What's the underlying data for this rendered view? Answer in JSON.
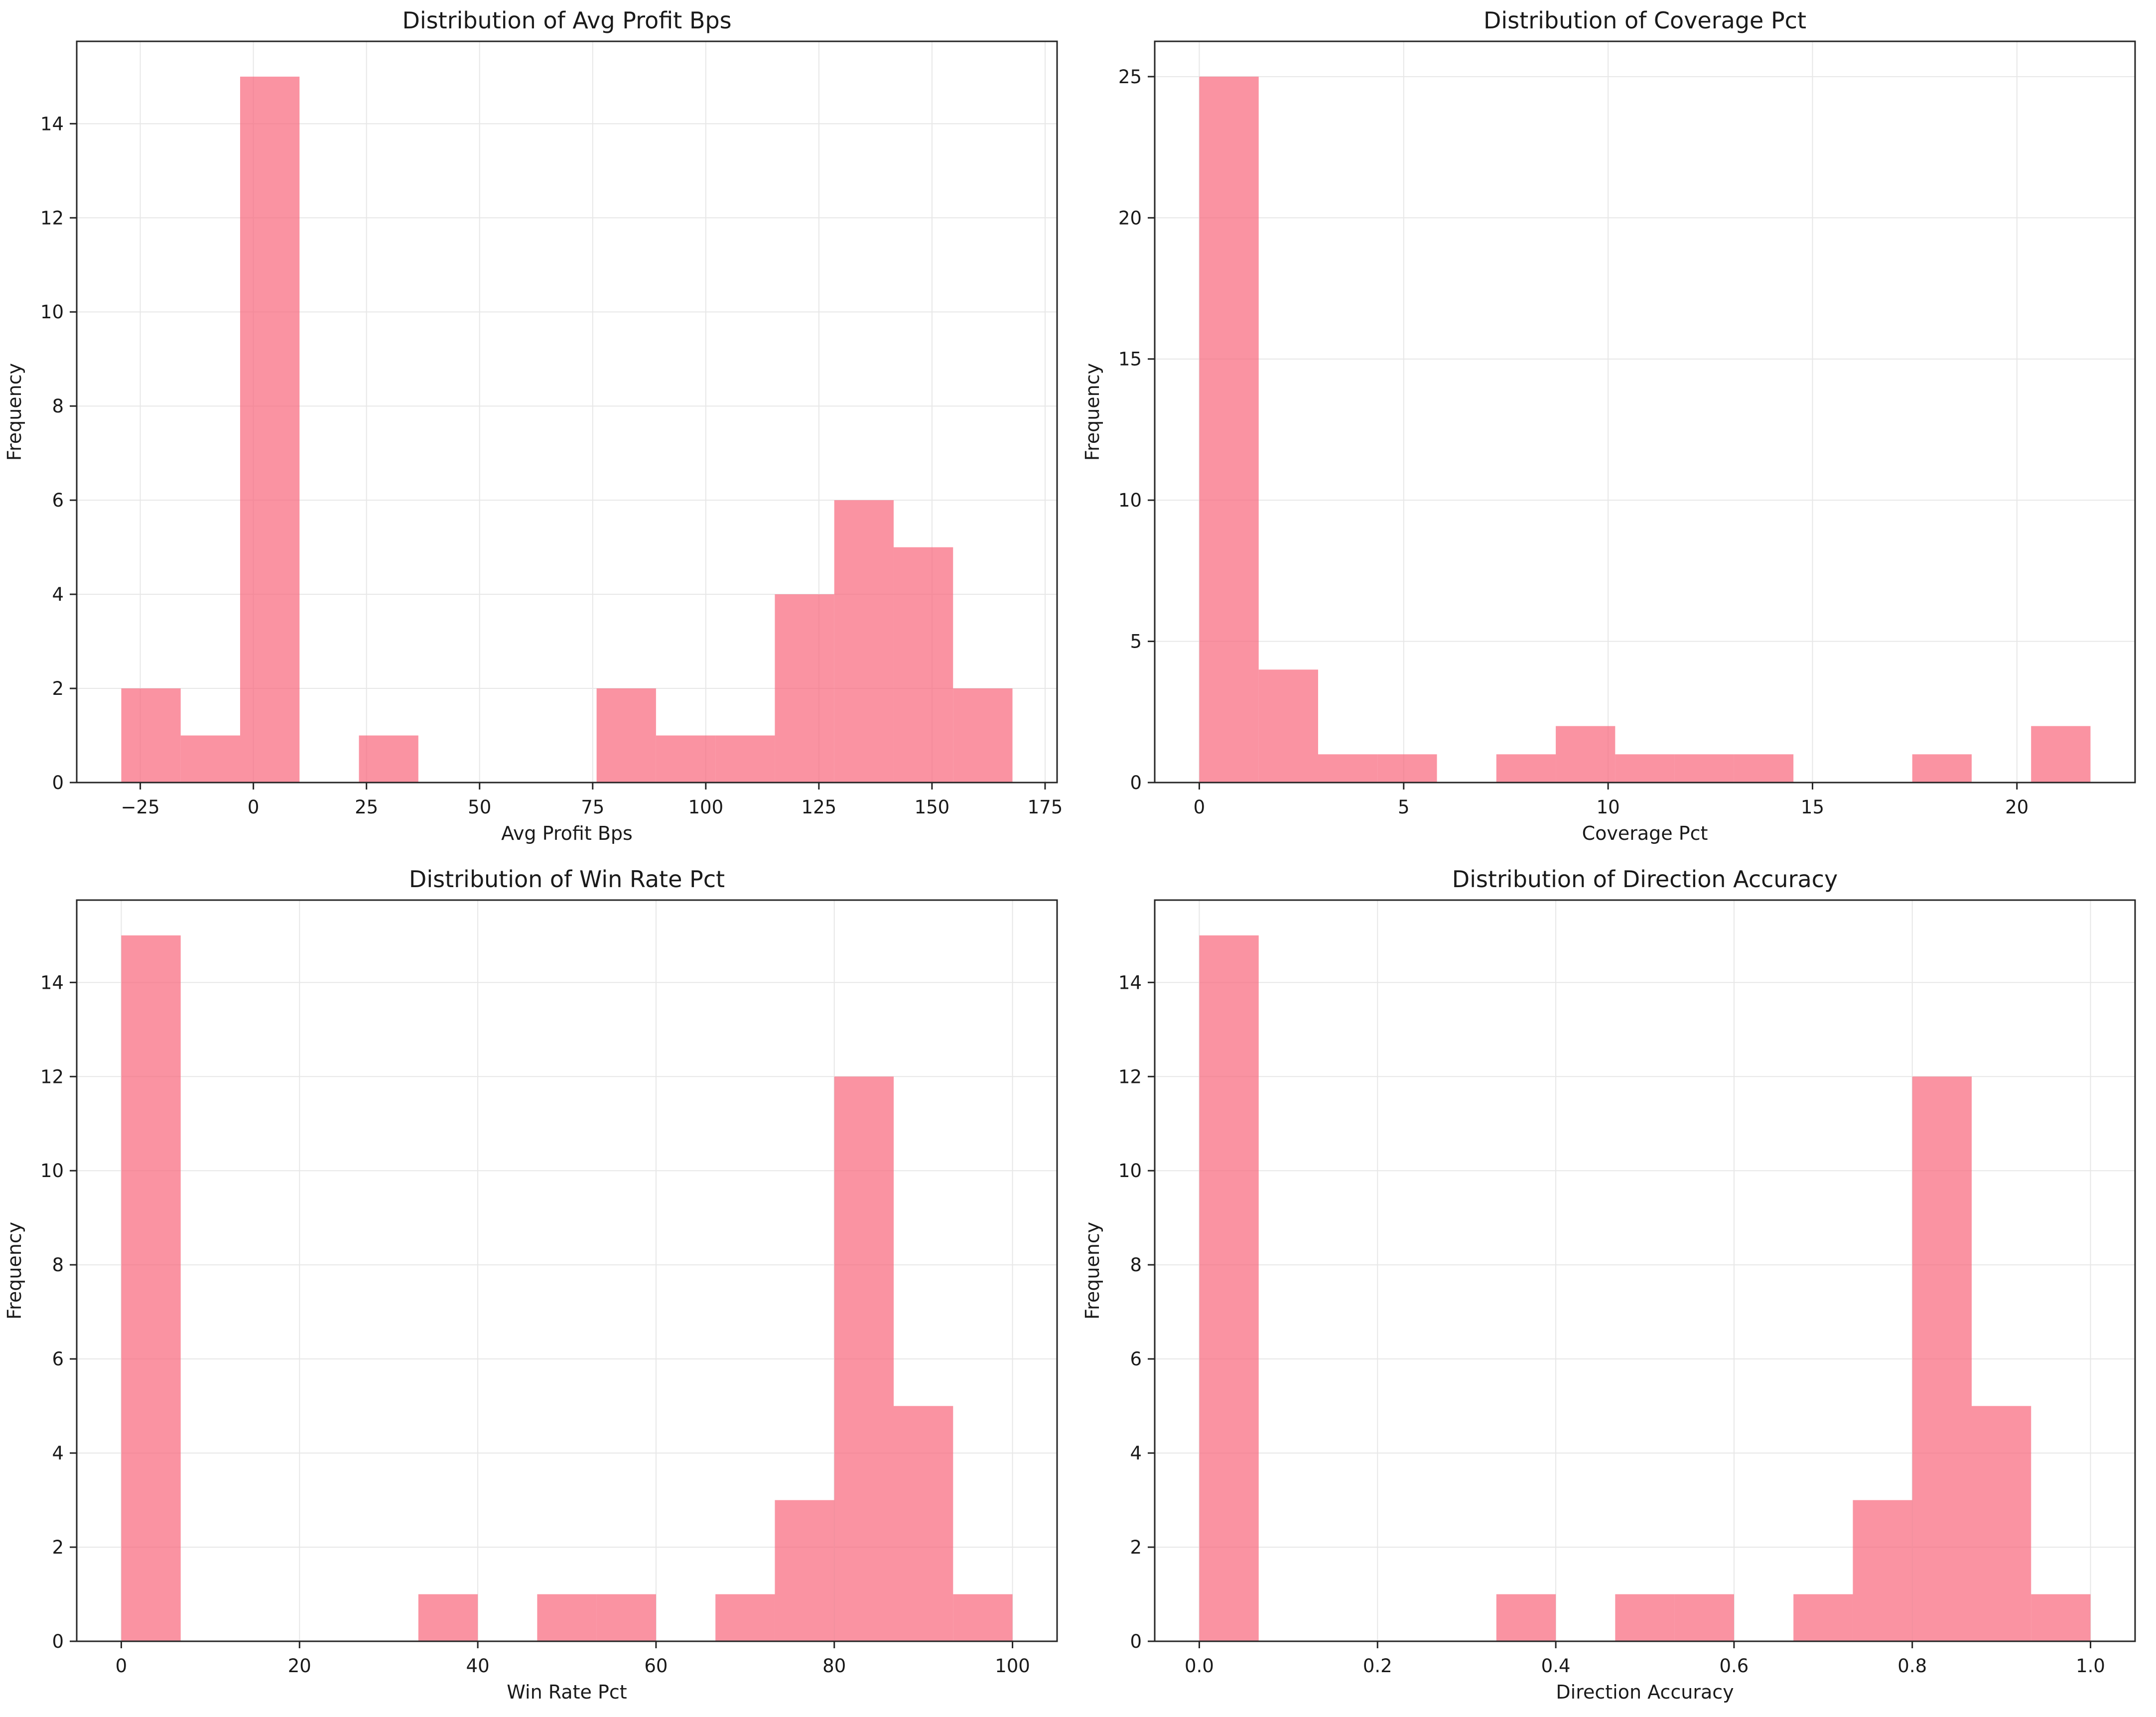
{
  "style": {
    "background": "#ffffff",
    "bar_color": "#f86a7e",
    "bar_opacity": 0.72,
    "axis_color": "#262626",
    "grid_color": "#e7e7e7",
    "text_color": "#1a1a1a"
  },
  "chart_data": [
    {
      "type": "bar",
      "subtype": "histogram",
      "title": "Distribution of Avg Profit Bps",
      "xlabel": "Avg Profit Bps",
      "ylabel": "Frequency",
      "bin_start": -29.2,
      "bin_width": 13.133,
      "counts": [
        2,
        1,
        15,
        0,
        1,
        0,
        0,
        0,
        2,
        1,
        1,
        4,
        6,
        5,
        2
      ],
      "xlim": [
        -39.05,
        177.65
      ],
      "ylim": [
        0,
        15.75
      ],
      "grid": true,
      "legend": false,
      "x_ticks": {
        "values": [
          -25,
          0,
          25,
          50,
          75,
          100,
          125,
          150,
          175
        ],
        "labels": [
          "−25",
          "0",
          "25",
          "50",
          "75",
          "100",
          "125",
          "150",
          "175"
        ]
      },
      "y_ticks": {
        "values": [
          0,
          2,
          4,
          6,
          8,
          10,
          12,
          14
        ],
        "labels": [
          "0",
          "2",
          "4",
          "6",
          "8",
          "10",
          "12",
          "14"
        ]
      }
    },
    {
      "type": "bar",
      "subtype": "histogram",
      "title": "Distribution of Coverage Pct",
      "xlabel": "Coverage Pct",
      "ylabel": "Frequency",
      "bin_start": 0,
      "bin_width": 1.4533,
      "counts": [
        25,
        4,
        1,
        1,
        0,
        1,
        2,
        1,
        1,
        1,
        0,
        0,
        1,
        0,
        2
      ],
      "xlim": [
        -1.09,
        22.89
      ],
      "ylim": [
        0,
        26.25
      ],
      "grid": true,
      "legend": false,
      "x_ticks": {
        "values": [
          0,
          5,
          10,
          15,
          20
        ],
        "labels": [
          "0",
          "5",
          "10",
          "15",
          "20"
        ]
      },
      "y_ticks": {
        "values": [
          0,
          5,
          10,
          15,
          20,
          25
        ],
        "labels": [
          "0",
          "5",
          "10",
          "15",
          "20",
          "25"
        ]
      }
    },
    {
      "type": "bar",
      "subtype": "histogram",
      "title": "Distribution of Win Rate Pct",
      "xlabel": "Win Rate Pct",
      "ylabel": "Frequency",
      "bin_start": 0,
      "bin_width": 6.6667,
      "counts": [
        15,
        0,
        0,
        0,
        0,
        1,
        0,
        1,
        1,
        0,
        1,
        3,
        12,
        5,
        1
      ],
      "xlim": [
        -5,
        105
      ],
      "ylim": [
        0,
        15.75
      ],
      "grid": true,
      "legend": false,
      "x_ticks": {
        "values": [
          0,
          20,
          40,
          60,
          80,
          100
        ],
        "labels": [
          "0",
          "20",
          "40",
          "60",
          "80",
          "100"
        ]
      },
      "y_ticks": {
        "values": [
          0,
          2,
          4,
          6,
          8,
          10,
          12,
          14
        ],
        "labels": [
          "0",
          "2",
          "4",
          "6",
          "8",
          "10",
          "12",
          "14"
        ]
      }
    },
    {
      "type": "bar",
      "subtype": "histogram",
      "title": "Distribution of Direction Accuracy",
      "xlabel": "Direction Accuracy",
      "ylabel": "Frequency",
      "bin_start": 0,
      "bin_width": 0.066667,
      "counts": [
        15,
        0,
        0,
        0,
        0,
        1,
        0,
        1,
        1,
        0,
        1,
        3,
        12,
        5,
        1
      ],
      "xlim": [
        -0.05,
        1.05
      ],
      "ylim": [
        0,
        15.75
      ],
      "grid": true,
      "legend": false,
      "x_ticks": {
        "values": [
          0.0,
          0.2,
          0.4,
          0.6,
          0.8,
          1.0
        ],
        "labels": [
          "0.0",
          "0.2",
          "0.4",
          "0.6",
          "0.8",
          "1.0"
        ]
      },
      "y_ticks": {
        "values": [
          0,
          2,
          4,
          6,
          8,
          10,
          12,
          14
        ],
        "labels": [
          "0",
          "2",
          "4",
          "6",
          "8",
          "10",
          "12",
          "14"
        ]
      }
    }
  ]
}
